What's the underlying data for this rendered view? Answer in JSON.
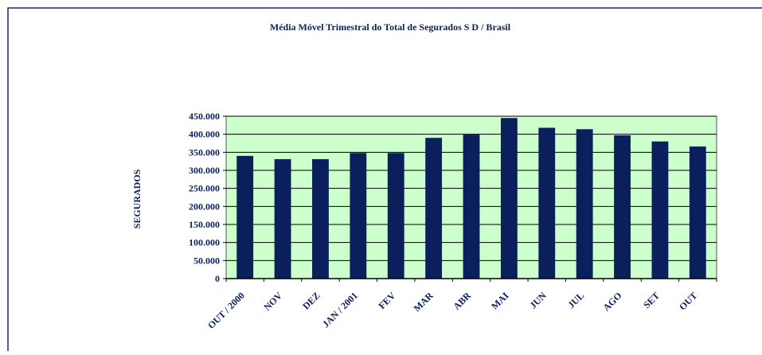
{
  "chart_data": {
    "type": "bar",
    "title": "Média Móvel Trimestral do Total de Segurados S D / Brasil",
    "ylabel": "SEGURADOS",
    "categories": [
      "OUT / 2000",
      "NOV",
      "DEZ",
      "JAN / 2001",
      "FEV",
      "MAR",
      "ABR",
      "MAI",
      "JUN",
      "JUL",
      "AGO",
      "SET",
      "OUT"
    ],
    "values": [
      340000,
      331000,
      331000,
      348000,
      348000,
      390000,
      399000,
      445000,
      418000,
      414000,
      397000,
      380000,
      366000
    ],
    "color": "#0a1f5c",
    "ylim": [
      0,
      450000
    ],
    "yticks": [
      0,
      {
        "value": 50000,
        "label": "50.000"
      },
      {
        "value": 100000,
        "label": "100.000"
      },
      {
        "value": 150000,
        "label": "150.000"
      },
      {
        "value": 200000,
        "label": "200.000"
      },
      {
        "value": 250000,
        "label": "250.000"
      },
      {
        "value": 300000,
        "label": "300.000"
      },
      {
        "value": 350000,
        "label": "350.000"
      },
      {
        "value": 400000,
        "label": "400.000"
      },
      {
        "value": 450000,
        "label": "450.000"
      }
    ],
    "grid": true
  }
}
